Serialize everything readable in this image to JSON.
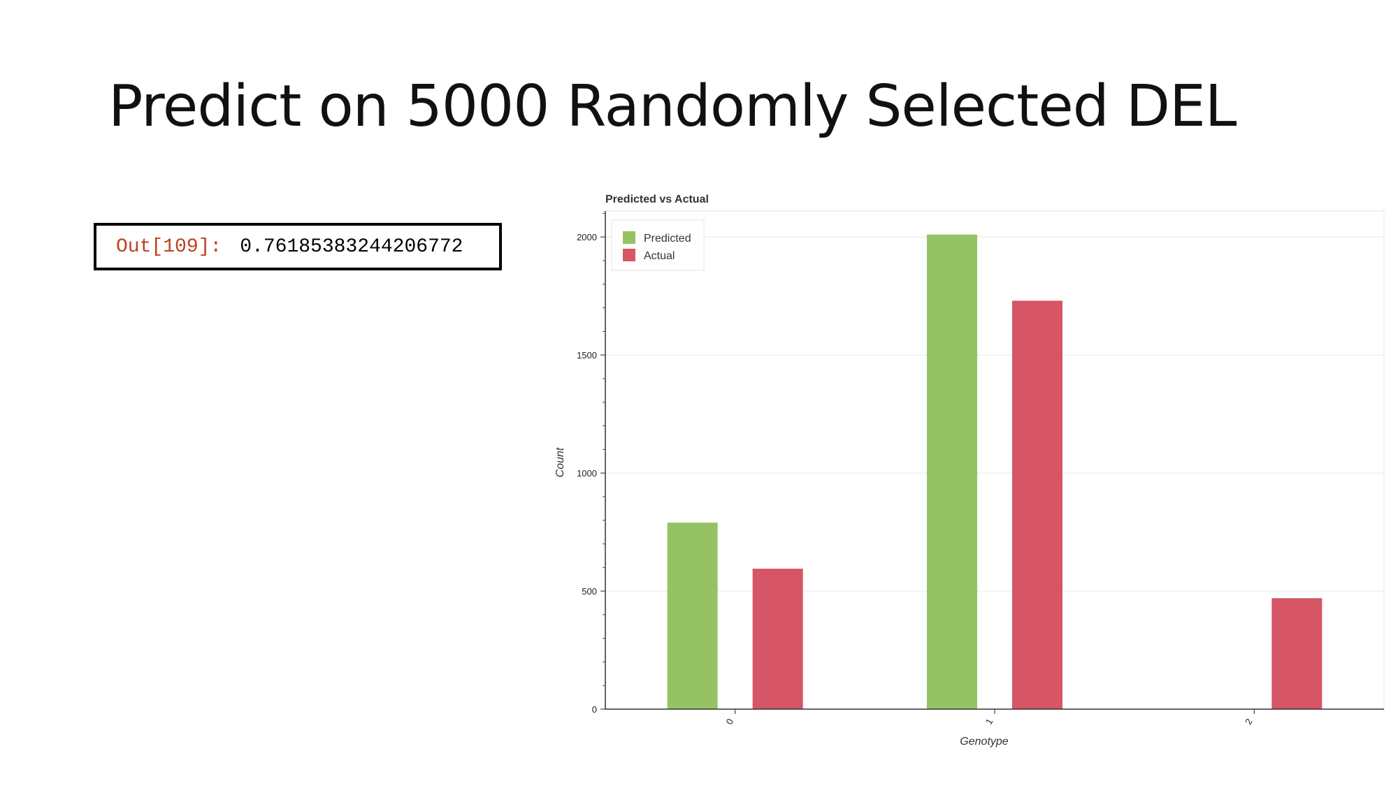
{
  "slide": {
    "title": "Predict on 5000 Randomly Selected DEL"
  },
  "output_cell": {
    "label": "Out[109]:",
    "value": "0.76185383244206772"
  },
  "colors": {
    "predicted": "#95c264",
    "actual": "#d65566"
  },
  "chart_data": {
    "type": "bar",
    "title": "Predicted vs Actual",
    "xlabel": "Genotype",
    "ylabel": "Count",
    "categories": [
      "0",
      "1",
      "2"
    ],
    "series": [
      {
        "name": "Predicted",
        "values": [
          790,
          2010,
          0
        ]
      },
      {
        "name": "Actual",
        "values": [
          595,
          1730,
          470
        ]
      }
    ],
    "yticks": [
      0,
      500,
      1000,
      1500,
      2000
    ],
    "ylim": [
      0,
      2110
    ],
    "grid": true,
    "legend_position": "top-left"
  }
}
